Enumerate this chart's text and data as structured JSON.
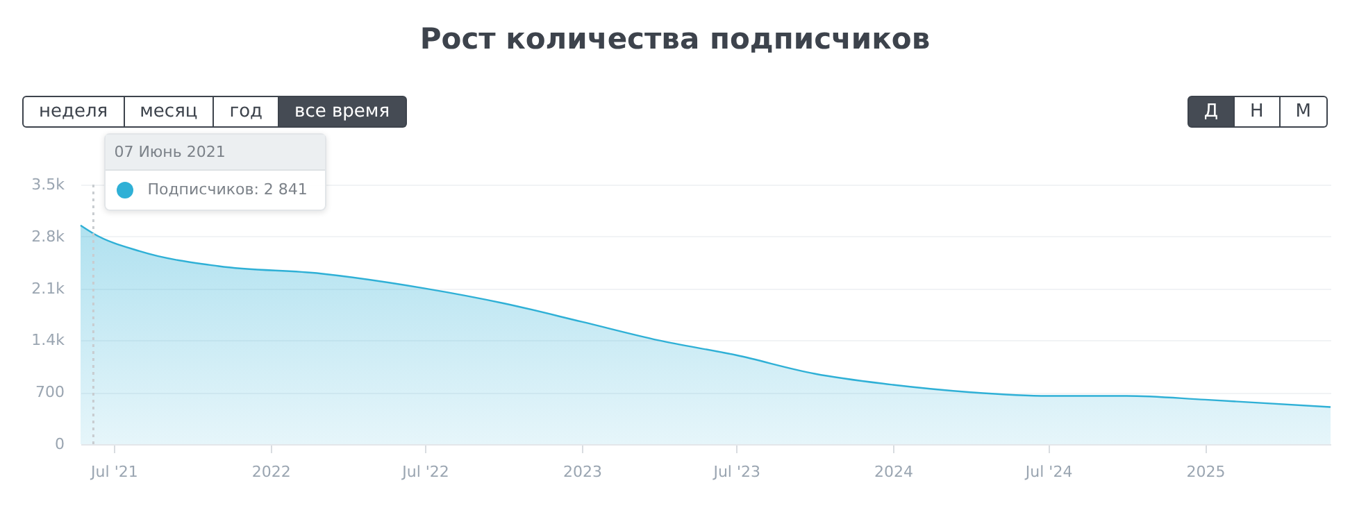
{
  "chart_data": {
    "type": "area",
    "title": "Рост количества подписчиков",
    "x": [
      "2021-05-23",
      "2021-06-07",
      "2021-08-01",
      "2021-11-01",
      "2022-03-01",
      "2022-07-01",
      "2022-10-01",
      "2023-01-01",
      "2023-04-01",
      "2023-07-01",
      "2023-10-01",
      "2024-01-01",
      "2024-04-01",
      "2024-07-01",
      "2024-10-01",
      "2025-01-01",
      "2025-05-28"
    ],
    "series": [
      {
        "color": "#2fb0d6",
        "values": [
          2950,
          2841,
          2600,
          2400,
          2300,
          2100,
          1900,
          1650,
          1400,
          1200,
          950,
          800,
          700,
          650,
          650,
          600,
          500
        ]
      }
    ],
    "xlim": [
      "2021-05-23",
      "2025-05-28"
    ],
    "xticks": [
      {
        "value": "2021-07-01",
        "label": "Jul '21"
      },
      {
        "value": "2022-01-01",
        "label": "2022"
      },
      {
        "value": "2022-07-01",
        "label": "Jul '22"
      },
      {
        "value": "2023-01-01",
        "label": "2023"
      },
      {
        "value": "2023-07-01",
        "label": "Jul '23"
      },
      {
        "value": "2024-01-01",
        "label": "2024"
      },
      {
        "value": "2024-07-01",
        "label": "Jul '24"
      },
      {
        "value": "2025-01-01",
        "label": "2025"
      }
    ],
    "ylim": [
      0,
      3500
    ],
    "yticks": [
      0,
      700,
      {
        "value": 1400,
        "label": "1.4k"
      },
      {
        "value": 2100,
        "label": "2.1k"
      },
      {
        "value": 2800,
        "label": "2.8k"
      },
      {
        "value": 3500,
        "label": "3.5k"
      }
    ],
    "grid": "y",
    "marker": "none",
    "ref_lines": [
      {
        "axis": "x",
        "value": "2021-06-07",
        "color": "#c8ccd0",
        "line_style": "dotted"
      }
    ],
    "annotations": [
      "неделя",
      "месяц",
      "год",
      "все время",
      "Д",
      "Н",
      "М",
      "07 Июнь 2021",
      "Подписчиков: 2 841"
    ]
  }
}
